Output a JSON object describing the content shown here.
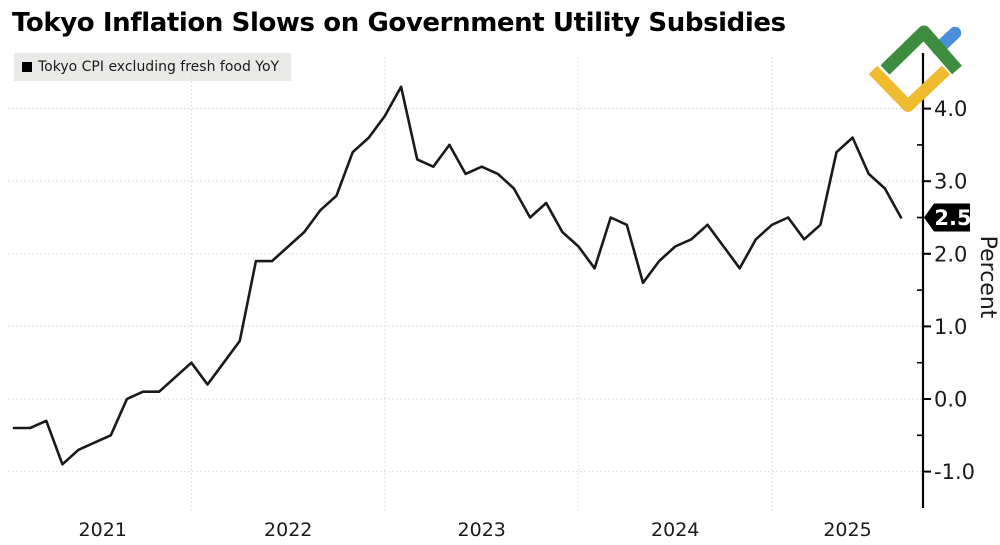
{
  "header": {
    "title": "Tokyo Inflation Slows on Government Utility Subsidies"
  },
  "legend": {
    "swatch": "black-square",
    "label": "Tokyo CPI excluding fresh food YoY"
  },
  "chart_data": {
    "type": "line",
    "title": "Tokyo Inflation Slows on Government Utility Subsidies",
    "series_name": "Tokyo CPI excluding fresh food YoY",
    "ylabel": "Percent",
    "ylim": [
      -1.5,
      4.6
    ],
    "grid": "dotted",
    "legend_position": "top-left",
    "axis_side": "right",
    "x": [
      "2021-01",
      "2021-02",
      "2021-03",
      "2021-04",
      "2021-05",
      "2021-06",
      "2021-07",
      "2021-08",
      "2021-09",
      "2021-10",
      "2021-11",
      "2021-12",
      "2022-01",
      "2022-02",
      "2022-03",
      "2022-04",
      "2022-05",
      "2022-06",
      "2022-07",
      "2022-08",
      "2022-09",
      "2022-10",
      "2022-11",
      "2022-12",
      "2023-01",
      "2023-02",
      "2023-03",
      "2023-04",
      "2023-05",
      "2023-06",
      "2023-07",
      "2023-08",
      "2023-09",
      "2023-10",
      "2023-11",
      "2023-12",
      "2024-01",
      "2024-02",
      "2024-03",
      "2024-04",
      "2024-05",
      "2024-06",
      "2024-07",
      "2024-08",
      "2024-09",
      "2024-10",
      "2024-11",
      "2024-12",
      "2025-01",
      "2025-02",
      "2025-03",
      "2025-04",
      "2025-05",
      "2025-06",
      "2025-07",
      "2025-08"
    ],
    "values": [
      -0.4,
      -0.4,
      -0.3,
      -0.9,
      -0.7,
      -0.6,
      -0.5,
      0.0,
      0.1,
      0.1,
      0.3,
      0.5,
      0.2,
      0.5,
      0.8,
      1.9,
      1.9,
      2.1,
      2.3,
      2.6,
      2.8,
      3.4,
      3.6,
      3.9,
      4.3,
      3.3,
      3.2,
      3.5,
      3.1,
      3.2,
      3.1,
      2.9,
      2.5,
      2.7,
      2.3,
      2.1,
      1.8,
      2.5,
      2.4,
      1.6,
      1.9,
      2.1,
      2.2,
      2.4,
      2.1,
      1.8,
      2.2,
      2.4,
      2.5,
      2.2,
      2.4,
      3.4,
      3.6,
      3.1,
      2.9,
      2.5
    ],
    "yticks": [
      {
        "label": "4.0",
        "value": 4.0
      },
      {
        "label": "3.0",
        "value": 3.0
      },
      {
        "label": "2.0",
        "value": 2.0
      },
      {
        "label": "1.0",
        "value": 1.0
      },
      {
        "label": "0.0",
        "value": 0.0
      },
      {
        "label": "-1.0",
        "value": -1.0
      }
    ],
    "minor_yticks": [
      3.5,
      2.5,
      1.5,
      0.5,
      -0.5
    ],
    "xticks": [
      "2021",
      "2022",
      "2023",
      "2024",
      "2025"
    ],
    "year_boundary_indices": [
      11,
      23,
      35,
      47
    ],
    "latest": {
      "label": "2.5",
      "value": 2.5
    }
  },
  "colors": {
    "line": "#1a1a1a",
    "axis": "#000000",
    "gridline": "#d9d9d9",
    "text": "#1a1a1a",
    "badge_bg": "#000000",
    "badge_text": "#ffffff",
    "legend_bg": "#e9e9e7"
  },
  "logo": {
    "name": "litefinance-logo",
    "green": "#3e8c3f",
    "blue": "#4a90d9",
    "yellow": "#f0ba2e"
  }
}
